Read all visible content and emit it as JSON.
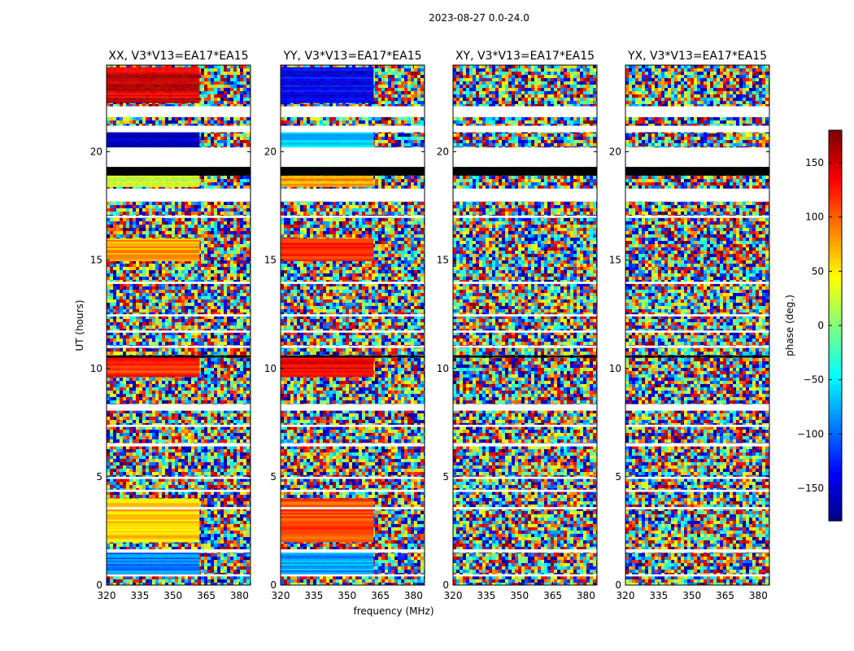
{
  "chart_data": {
    "type": "heatmap",
    "suptitle": "2023-08-27 0.0-24.0",
    "xlabel": "frequency (MHz)",
    "ylabel": "UT (hours)",
    "xlim": [
      320,
      385
    ],
    "ylim": [
      0,
      24
    ],
    "xticks": [
      320,
      335,
      350,
      365,
      380
    ],
    "xtick_labels": [
      "320",
      "335",
      "350",
      "365",
      "380"
    ],
    "yticks": [
      0,
      5,
      10,
      15,
      20
    ],
    "ytick_labels": [
      "0",
      "5",
      "10",
      "15",
      "20"
    ],
    "colorbar": {
      "label": "phase (deg.)",
      "colormap": "jet",
      "range": [
        -180,
        180
      ],
      "ticks": [
        -150,
        -100,
        -50,
        0,
        50,
        100,
        150
      ],
      "tick_labels": [
        "−150",
        "−100",
        "−50",
        "0",
        "50",
        "100",
        "150"
      ]
    },
    "panels": [
      {
        "title": "XX, V3*V13=EA17*EA15",
        "correlation": "XX"
      },
      {
        "title": "YY, V3*V13=EA17*EA15",
        "correlation": "YY"
      },
      {
        "title": "XY, V3*V13=EA17*EA15",
        "correlation": "XY"
      },
      {
        "title": "YX, V3*V13=EA17*EA15",
        "correlation": "YX"
      }
    ],
    "no_data_bands_hours": [
      [
        21.6,
        22.1
      ],
      [
        20.9,
        21.2
      ],
      [
        19.3,
        20.2
      ],
      [
        17.7,
        18.3
      ],
      [
        16.95,
        17.05
      ],
      [
        13.9,
        14.0
      ],
      [
        12.4,
        12.5
      ],
      [
        11.65,
        11.75
      ],
      [
        10.95,
        11.05
      ],
      [
        8.05,
        8.35
      ],
      [
        7.3,
        7.4
      ],
      [
        6.4,
        6.55
      ],
      [
        4.9,
        5.0
      ],
      [
        4.3,
        4.4
      ],
      [
        3.5,
        3.6
      ],
      [
        1.5,
        1.65
      ],
      [
        0.4,
        0.5
      ]
    ],
    "flagged_black_bands_hours": [
      [
        18.9,
        19.3
      ],
      [
        10.5,
        10.6
      ]
    ],
    "coherent_phase_bands": [
      {
        "panel": "XX",
        "utrange": [
          22.3,
          23.9
        ],
        "phase_deg": 150
      },
      {
        "panel": "XX",
        "utrange": [
          20.2,
          20.9
        ],
        "phase_deg": -160
      },
      {
        "panel": "XX",
        "utrange": [
          18.4,
          18.9
        ],
        "phase_deg": 30
      },
      {
        "panel": "XX",
        "utrange": [
          15.0,
          16.0
        ],
        "phase_deg": 80
      },
      {
        "panel": "XX",
        "utrange": [
          9.6,
          10.5
        ],
        "phase_deg": 120
      },
      {
        "panel": "XX",
        "utrange": [
          2.0,
          4.0
        ],
        "phase_deg": 60
      },
      {
        "panel": "XX",
        "utrange": [
          0.5,
          1.5
        ],
        "phase_deg": -90
      },
      {
        "panel": "YY",
        "utrange": [
          22.3,
          23.9
        ],
        "phase_deg": -140
      },
      {
        "panel": "YY",
        "utrange": [
          20.2,
          20.9
        ],
        "phase_deg": -60
      },
      {
        "panel": "YY",
        "utrange": [
          18.4,
          18.9
        ],
        "phase_deg": 80
      },
      {
        "panel": "YY",
        "utrange": [
          15.0,
          16.0
        ],
        "phase_deg": 120
      },
      {
        "panel": "YY",
        "utrange": [
          9.6,
          10.5
        ],
        "phase_deg": 140
      },
      {
        "panel": "YY",
        "utrange": [
          2.0,
          4.0
        ],
        "phase_deg": 110
      },
      {
        "panel": "YY",
        "utrange": [
          0.5,
          1.5
        ],
        "phase_deg": -80
      }
    ]
  }
}
